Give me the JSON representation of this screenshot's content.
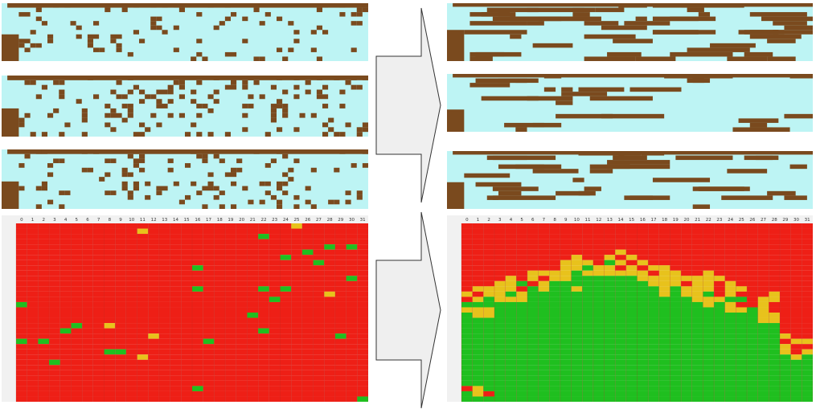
{
  "colors": {
    "empty_cell": "#bdf4f4",
    "filled_cell": "#7a4a1e",
    "heatmap_high": "#ee1f16",
    "heatmap_mid": "#e8c21c",
    "heatmap_low": "#1fbf1f",
    "header_bg": "#f1f1f1",
    "gridline": "#b22a22",
    "arrow_fill": "#efefef",
    "arrow_stroke": "#333333"
  },
  "icons": {
    "arrow_top": "right-arrow-icon",
    "arrow_bottom": "right-arrow-icon"
  },
  "heatmap_left": {
    "column_headers": [
      "0",
      "1",
      "2",
      "3",
      "4",
      "5",
      "6",
      "7",
      "8",
      "9",
      "10",
      "11",
      "12",
      "13",
      "14",
      "15",
      "16",
      "17",
      "18",
      "19",
      "20",
      "21",
      "22",
      "23",
      "24",
      "25",
      "26",
      "27",
      "28",
      "29",
      "30",
      "31"
    ]
  },
  "heatmap_right": {
    "column_headers": [
      "0",
      "1",
      "2",
      "3",
      "4",
      "5",
      "6",
      "7",
      "8",
      "9",
      "10",
      "11",
      "12",
      "13",
      "14",
      "15",
      "16",
      "17",
      "18",
      "19",
      "20",
      "21",
      "22",
      "23",
      "24",
      "25",
      "26",
      "27",
      "28",
      "29",
      "30",
      "31"
    ]
  }
}
